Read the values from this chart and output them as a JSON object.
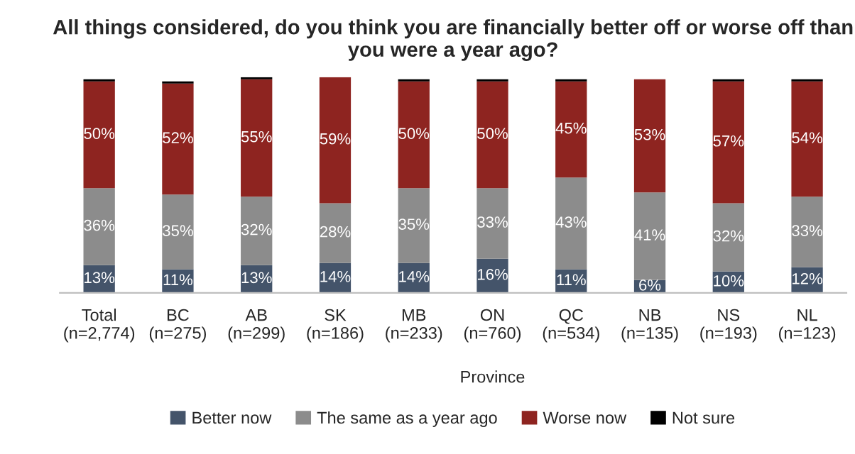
{
  "chart_data": {
    "type": "bar",
    "stacked": true,
    "title": "All things considered, do you think you are financially better off or worse off than you were a year ago?",
    "categories": [
      "Total\n(n=2,774)",
      "BC\n(n=275)",
      "AB\n(n=299)",
      "SK\n(n=186)",
      "MB\n(n=233)",
      "ON\n(n=760)",
      "QC\n(n=534)",
      "NB\n(n=135)",
      "NS\n(n=193)",
      "NL\n(n=123)"
    ],
    "series": [
      {
        "name": "Better now",
        "color": "#44546a",
        "values": [
          13,
          11,
          13,
          14,
          14,
          16,
          11,
          6,
          10,
          12
        ],
        "value_labels": [
          "13%",
          "11%",
          "13%",
          "14%",
          "14%",
          "16%",
          "11%",
          "6%",
          "10%",
          "12%"
        ]
      },
      {
        "name": "The same as a year ago",
        "color": "#8c8c8c",
        "values": [
          36,
          35,
          32,
          28,
          35,
          33,
          43,
          41,
          32,
          33
        ],
        "value_labels": [
          "36%",
          "35%",
          "32%",
          "28%",
          "35%",
          "33%",
          "43%",
          "41%",
          "32%",
          "33%"
        ]
      },
      {
        "name": "Worse now",
        "color": "#8e2420",
        "values": [
          50,
          52,
          55,
          59,
          50,
          50,
          45,
          53,
          57,
          54
        ],
        "value_labels": [
          "50%",
          "52%",
          "55%",
          "59%",
          "50%",
          "50%",
          "45%",
          "53%",
          "57%",
          "54%"
        ]
      },
      {
        "name": "Not sure",
        "color": "#000000",
        "values": [
          1,
          1,
          1,
          0,
          1,
          1,
          1,
          0,
          1,
          1
        ]
      }
    ],
    "annotations": [
      "Province"
    ],
    "tick_labels": "x",
    "legend": "bottom",
    "grid": false
  }
}
